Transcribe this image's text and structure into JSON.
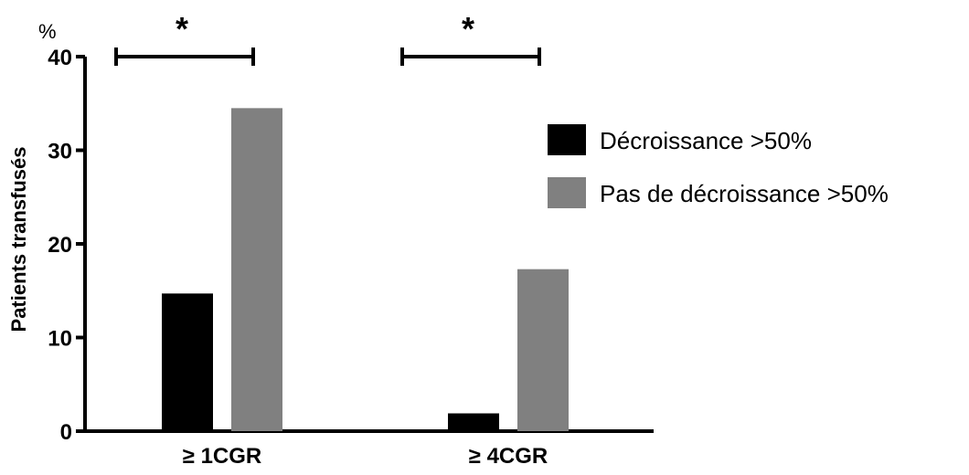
{
  "chart_data": {
    "type": "bar",
    "title": "",
    "ylabel": "Patients transfusés",
    "yunit": "%",
    "xlabel": "",
    "categories": [
      "≥ 1CGR",
      "≥ 4CGR"
    ],
    "series": [
      {
        "name": "Décroissance >50%",
        "color": "#000000",
        "values": [
          14.7,
          1.9
        ]
      },
      {
        "name": "Pas de décroissance >50%",
        "color": "#808080",
        "values": [
          34.5,
          17.3
        ]
      }
    ],
    "ylim": [
      0,
      40
    ],
    "yticks": [
      0,
      10,
      20,
      30,
      40
    ],
    "grid": false,
    "legend_position": "right",
    "significance": [
      {
        "category": "≥ 1CGR",
        "label": "*"
      },
      {
        "category": "≥ 4CGR",
        "label": "*"
      }
    ]
  }
}
